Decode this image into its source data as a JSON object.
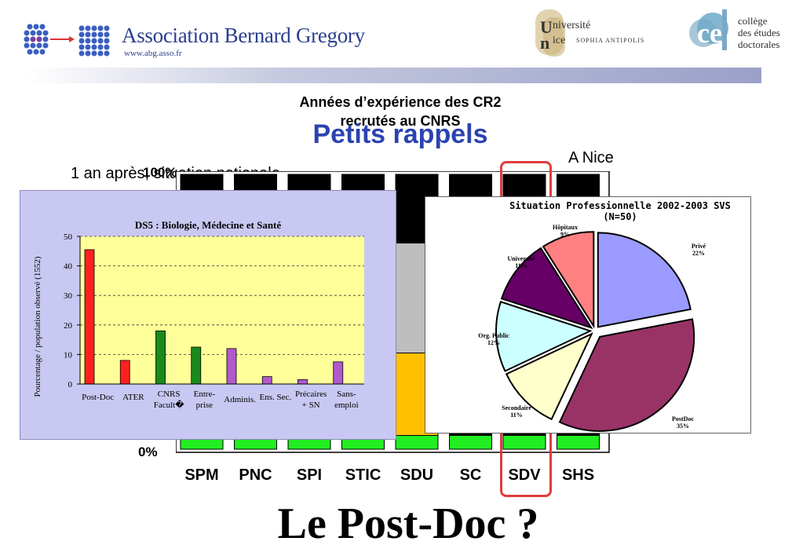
{
  "header": {
    "abg_title": "Association Bernard Gregory",
    "abg_url": "www.abg.asso.fr",
    "unice_line1": "niversité",
    "unice_line2": "ice",
    "unice_sub": "SOPHIA ANTIPOLIS",
    "unice_u": "U",
    "unice_n": "n",
    "ced_line1": "collège",
    "ced_line2": "des études",
    "ced_line3": "doctorales"
  },
  "slide": {
    "bg_title_line1": "Années d’expérience des CR2",
    "bg_title_line2": "recrutés au CNRS",
    "petits_rappels": "Petits rappels",
    "a_nice": "A Nice",
    "national": "1 an après, situation nationale",
    "pct_100": "100%",
    "pct_0": "0%",
    "bottom_title": "Le Post-Doc ?"
  },
  "colors": {
    "accent_blue": "#2b43b0",
    "highlight_red": "#e03c3c",
    "green": "#22ee22",
    "gray": "#bebebe",
    "orange": "#ffc000",
    "black": "#000000"
  },
  "chart_data": [
    {
      "type": "bar",
      "title": "Années d’expérience des CR2 recrutés au CNRS",
      "categories": [
        "SPM",
        "PNC",
        "SPI",
        "STIC",
        "SDU",
        "SC",
        "SDV",
        "SHS"
      ],
      "ylim": [
        0,
        100
      ],
      "ytick_labels": [
        "0%",
        "100%"
      ],
      "stack_colors": [
        "#22ee22",
        "#ffc000",
        "#bebebe",
        "#000000"
      ],
      "series": [
        {
          "values": [
            5,
            5,
            5,
            5,
            5,
            5,
            5,
            5
          ]
        },
        {
          "values": [
            0,
            0,
            0,
            0,
            30,
            0,
            0,
            0
          ]
        },
        {
          "values": [
            0,
            0,
            0,
            0,
            40,
            0,
            0,
            0
          ]
        },
        {
          "values": [
            95,
            95,
            95,
            95,
            25,
            95,
            95,
            95
          ]
        }
      ],
      "highlight_category": "SDV"
    },
    {
      "type": "bar",
      "title": "DS5 : Biologie, Médecine et Santé",
      "ylabel": "Pourcentage / population observé (1552)",
      "ylim": [
        0,
        50
      ],
      "yticks": [
        "0",
        "10",
        "20",
        "30",
        "40",
        "50"
      ],
      "grid": true,
      "categories": [
        [
          "Post-Doc"
        ],
        [
          "ATER"
        ],
        [
          "CNRS",
          "Facult�"
        ],
        [
          "Entre-",
          "prise"
        ],
        [
          "Adminis."
        ],
        [
          "Ens. Sec."
        ],
        [
          "Précaires",
          "+ SN"
        ],
        [
          "Sans-",
          "emploi"
        ]
      ],
      "values": [
        45.5,
        8,
        18,
        12.5,
        12,
        2.5,
        1.5,
        7.5
      ],
      "colors": [
        "#ff2020",
        "#ff2020",
        "#1a8a1a",
        "#1a8a1a",
        "#b05acd",
        "#b05acd",
        "#b05acd",
        "#b05acd"
      ]
    },
    {
      "type": "pie",
      "title_line1": "Situation Professionnelle 2002-2003 SVS",
      "title_line2": "(N=50)",
      "slices": [
        {
          "label": "Privé",
          "pct": "22%",
          "value": 22,
          "color": "#9b9bff"
        },
        {
          "label": "PostDoc",
          "pct": "35%",
          "value": 35,
          "color": "#993366"
        },
        {
          "label": "Secondaire",
          "pct": "11%",
          "value": 11,
          "color": "#ffffcc"
        },
        {
          "label": "Org. Public",
          "pct": "12%",
          "value": 12,
          "color": "#ccffff"
        },
        {
          "label": "Université",
          "pct": "11%",
          "value": 11,
          "color": "#660066"
        },
        {
          "label": "Hôpitaux",
          "pct": "9%",
          "value": 9,
          "color": "#ff8080"
        }
      ]
    }
  ]
}
